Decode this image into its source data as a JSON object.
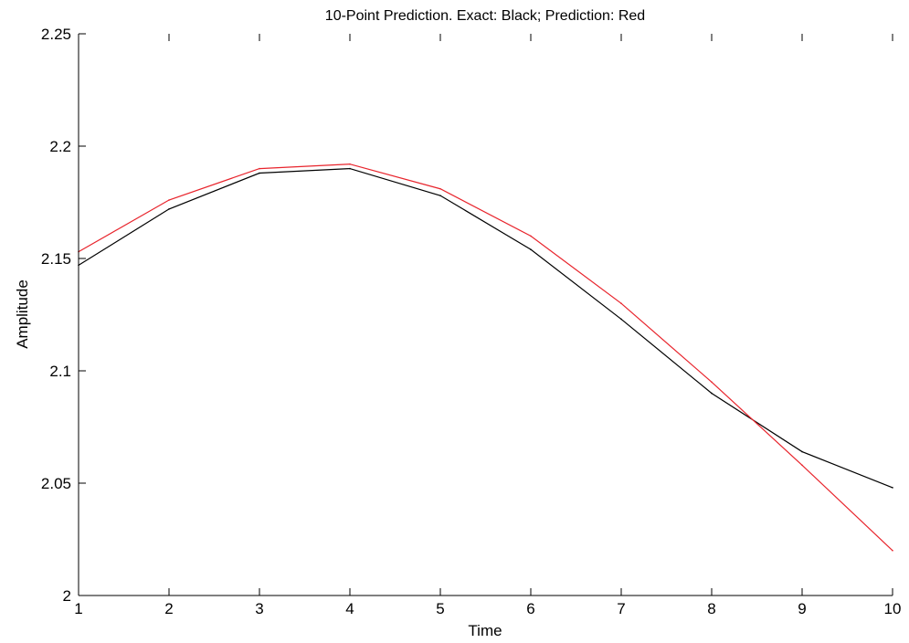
{
  "chart_data": {
    "type": "line",
    "title": "10-Point Prediction. Exact: Black; Prediction: Red",
    "xlabel": "Time",
    "ylabel": "Amplitude",
    "x": [
      1,
      2,
      3,
      4,
      5,
      6,
      7,
      8,
      9,
      10
    ],
    "xlim": [
      1,
      10
    ],
    "ylim": [
      2,
      2.25
    ],
    "xticks": [
      1,
      2,
      3,
      4,
      5,
      6,
      7,
      8,
      9,
      10
    ],
    "yticks": [
      2,
      2.05,
      2.1,
      2.15,
      2.2,
      2.25
    ],
    "xtick_labels": [
      "1",
      "2",
      "3",
      "4",
      "5",
      "6",
      "7",
      "8",
      "9",
      "10"
    ],
    "ytick_labels": [
      "2",
      "2.05",
      "2.1",
      "2.15",
      "2.2",
      "2.25"
    ],
    "grid": false,
    "series": [
      {
        "values": [
          2.147,
          2.172,
          2.188,
          2.19,
          2.178,
          2.154,
          2.123,
          2.09,
          2.064,
          2.048
        ],
        "color": "#000000"
      },
      {
        "values": [
          2.153,
          2.176,
          2.19,
          2.192,
          2.181,
          2.16,
          2.13,
          2.095,
          2.058,
          2.02
        ],
        "color": "#e8242c"
      }
    ]
  }
}
